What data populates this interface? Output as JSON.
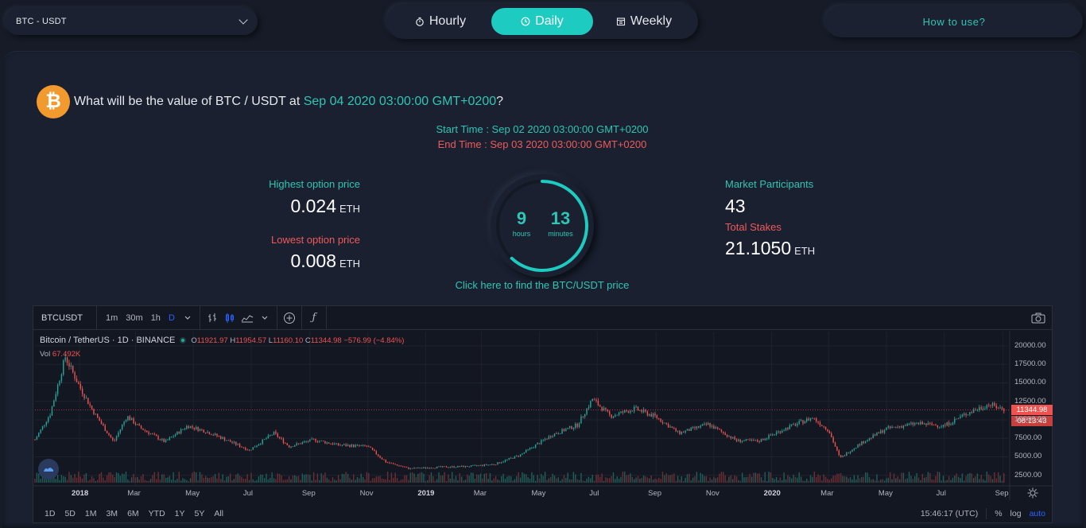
{
  "header": {
    "pair_label": "BTC - USDT",
    "periods": [
      {
        "label": "Hourly",
        "icon": "stopwatch-icon",
        "active": false
      },
      {
        "label": "Daily",
        "icon": "clock-icon",
        "active": true
      },
      {
        "label": "Weekly",
        "icon": "calendar-icon",
        "active": false
      }
    ],
    "how_to_label": "How to use?"
  },
  "question": {
    "prefix": "What will be the value of BTC / USDT at ",
    "date": "Sep 04 2020 03:00:00 GMT+0200",
    "suffix": "?"
  },
  "times": {
    "start": "Start Time : Sep 02 2020 03:00:00 GMT+0200",
    "end": "End Time : Sep 03 2020 03:00:00 GMT+0200"
  },
  "stats": {
    "highest_label": "Highest option price",
    "highest_value": "0.024",
    "lowest_label": "Lowest option price",
    "lowest_value": "0.008",
    "participants_label": "Market Participants",
    "participants_value": "43",
    "stakes_label": "Total Stakes",
    "stakes_value": "21.1050",
    "unit": "ETH"
  },
  "timer": {
    "hours": "9",
    "hours_label": "hours",
    "minutes": "13",
    "minutes_label": "minutes",
    "progress_fraction": 0.62
  },
  "find_link": "Click here to find the BTC/USDT price",
  "tv": {
    "symbol": "BTCUSDT",
    "timeframes": [
      "1m",
      "30m",
      "1h",
      "D"
    ],
    "active_timeframe": "D",
    "legend_title": "Bitcoin / TetherUS · 1D · BINANCE",
    "ohlc": {
      "o_key": "O",
      "o": "11921.97",
      "h_key": "H",
      "h": "11954.57",
      "l_key": "L",
      "l": "11160.10",
      "c_key": "C",
      "c": "11344.98",
      "change": "−576.99 (−4.84%)"
    },
    "vol_label": "Vol",
    "vol_value": "67.492K",
    "current_price": "11344.98",
    "countdown": "08:13:43",
    "ranges": [
      "1D",
      "5D",
      "1M",
      "3M",
      "6M",
      "YTD",
      "1Y",
      "5Y",
      "All"
    ],
    "clock": "15:46:17 (UTC)",
    "percent": "%",
    "log": "log",
    "auto": "auto"
  },
  "chart_data": {
    "type": "line",
    "title": "Bitcoin / TetherUS · 1D · BINANCE",
    "xlabel": "",
    "ylabel": "",
    "y_ticks": [
      2500,
      5000,
      7500,
      10000,
      12500,
      15000,
      17500,
      20000
    ],
    "y_tick_labels": [
      "2500.00",
      "5000.00",
      "7500.00",
      "10000.00",
      "12500.00",
      "15000.00",
      "17500.00",
      "20000.00"
    ],
    "ylim": [
      1500,
      21500
    ],
    "x_tick_labels": [
      "2018",
      "Mar",
      "May",
      "Jul",
      "Sep",
      "Nov",
      "2019",
      "Mar",
      "May",
      "Jul",
      "Sep",
      "Nov",
      "2020",
      "Mar",
      "May",
      "Jul",
      "Sep"
    ],
    "x_ticks": [
      "2018-01",
      "2018-03",
      "2018-05",
      "2018-07",
      "2018-09",
      "2018-11",
      "2019-01",
      "2019-03",
      "2019-05",
      "2019-07",
      "2019-09",
      "2019-11",
      "2020-01",
      "2020-03",
      "2020-05",
      "2020-07",
      "2020-09"
    ],
    "series": [
      {
        "x": [
          "2017-11-15",
          "2017-12-01",
          "2017-12-17",
          "2018-01-01",
          "2018-01-15",
          "2018-02-06",
          "2018-02-20",
          "2018-03-05",
          "2018-04-01",
          "2018-04-25",
          "2018-05-15",
          "2018-06-01",
          "2018-06-29",
          "2018-07-25",
          "2018-08-10",
          "2018-09-05",
          "2018-10-01",
          "2018-11-01",
          "2018-11-20",
          "2018-12-15",
          "2019-01-15",
          "2019-02-15",
          "2019-03-15",
          "2019-04-10",
          "2019-05-15",
          "2019-06-10",
          "2019-06-26",
          "2019-07-15",
          "2019-08-10",
          "2019-09-01",
          "2019-09-25",
          "2019-10-26",
          "2019-11-25",
          "2019-12-18",
          "2020-01-15",
          "2020-02-13",
          "2020-03-01",
          "2020-03-13",
          "2020-04-01",
          "2020-05-01",
          "2020-06-01",
          "2020-07-01",
          "2020-07-27",
          "2020-08-17",
          "2020-09-03"
        ],
        "values": [
          7300,
          10800,
          18500,
          14500,
          11200,
          7000,
          10500,
          9000,
          7000,
          9200,
          8400,
          7500,
          5900,
          8200,
          6400,
          7300,
          6600,
          6400,
          4300,
          3400,
          3600,
          3700,
          4000,
          5200,
          8000,
          9300,
          12800,
          10500,
          11500,
          10400,
          8200,
          9400,
          7200,
          7100,
          8800,
          10300,
          8600,
          4800,
          6600,
          8800,
          9500,
          9200,
          11000,
          12100,
          11345
        ]
      }
    ],
    "volume_note": "volume bars shown at bottom"
  }
}
